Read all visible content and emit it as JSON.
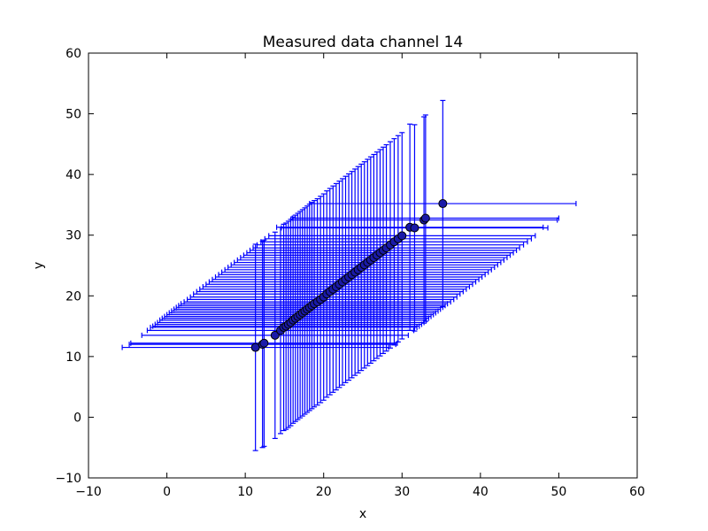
{
  "chart_data": {
    "type": "scatter",
    "title": "Measured data channel 14",
    "xlabel": "x",
    "ylabel": "y",
    "xlim": [
      -10,
      60
    ],
    "ylim": [
      -10,
      60
    ],
    "xticks": [
      -10,
      0,
      10,
      20,
      30,
      40,
      50,
      60
    ],
    "yticks": [
      -10,
      0,
      10,
      20,
      30,
      40,
      50,
      60
    ],
    "grid": false,
    "series": [
      {
        "color": "#0000ff",
        "marker": "circle",
        "error_bars": "x and y, symmetric, half-width 17",
        "points": [
          {
            "x": 11.3,
            "y": 11.5
          },
          {
            "x": 12.2,
            "y": 12.0
          },
          {
            "x": 12.4,
            "y": 12.2
          },
          {
            "x": 13.8,
            "y": 13.5
          },
          {
            "x": 14.5,
            "y": 14.3
          },
          {
            "x": 14.9,
            "y": 14.8
          },
          {
            "x": 15.2,
            "y": 15.0
          },
          {
            "x": 15.5,
            "y": 15.3
          },
          {
            "x": 15.8,
            "y": 15.6
          },
          {
            "x": 16.1,
            "y": 16.0
          },
          {
            "x": 16.4,
            "y": 16.3
          },
          {
            "x": 16.7,
            "y": 16.6
          },
          {
            "x": 17.0,
            "y": 16.9
          },
          {
            "x": 17.3,
            "y": 17.2
          },
          {
            "x": 17.6,
            "y": 17.5
          },
          {
            "x": 17.9,
            "y": 17.8
          },
          {
            "x": 18.2,
            "y": 18.1
          },
          {
            "x": 18.5,
            "y": 18.4
          },
          {
            "x": 18.8,
            "y": 18.7
          },
          {
            "x": 19.2,
            "y": 19.0
          },
          {
            "x": 19.6,
            "y": 19.4
          },
          {
            "x": 20.0,
            "y": 19.8
          },
          {
            "x": 20.4,
            "y": 20.3
          },
          {
            "x": 20.8,
            "y": 20.7
          },
          {
            "x": 21.2,
            "y": 21.1
          },
          {
            "x": 21.6,
            "y": 21.5
          },
          {
            "x": 22.0,
            "y": 21.9
          },
          {
            "x": 22.4,
            "y": 22.3
          },
          {
            "x": 22.8,
            "y": 22.7
          },
          {
            "x": 23.2,
            "y": 23.1
          },
          {
            "x": 23.6,
            "y": 23.5
          },
          {
            "x": 24.0,
            "y": 23.9
          },
          {
            "x": 24.4,
            "y": 24.3
          },
          {
            "x": 24.8,
            "y": 24.7
          },
          {
            "x": 25.2,
            "y": 25.1
          },
          {
            "x": 25.6,
            "y": 25.5
          },
          {
            "x": 26.0,
            "y": 25.9
          },
          {
            "x": 26.4,
            "y": 26.3
          },
          {
            "x": 26.8,
            "y": 26.7
          },
          {
            "x": 27.2,
            "y": 27.1
          },
          {
            "x": 27.6,
            "y": 27.5
          },
          {
            "x": 28.0,
            "y": 27.9
          },
          {
            "x": 28.5,
            "y": 28.4
          },
          {
            "x": 29.0,
            "y": 28.9
          },
          {
            "x": 29.5,
            "y": 29.4
          },
          {
            "x": 30.0,
            "y": 29.9
          },
          {
            "x": 31.0,
            "y": 31.3
          },
          {
            "x": 31.6,
            "y": 31.2
          },
          {
            "x": 32.8,
            "y": 32.5
          },
          {
            "x": 33.0,
            "y": 32.8
          },
          {
            "x": 35.2,
            "y": 35.2
          }
        ]
      }
    ]
  }
}
